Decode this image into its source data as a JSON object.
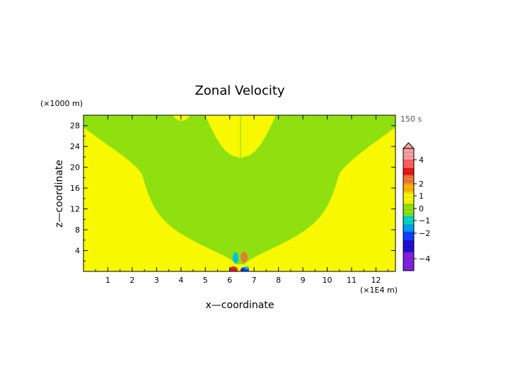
{
  "chart_data": {
    "type": "heatmap",
    "title": "Zonal Velocity",
    "time_label": "150 s",
    "xlabel": "x—coordinate",
    "ylabel": "z—coordinate",
    "x_unit": "(×1E4 m)",
    "y_unit": "(×1000 m)",
    "xlim": [
      0,
      12.8
    ],
    "ylim": [
      0,
      30
    ],
    "x_ticks": [
      1,
      2,
      3,
      4,
      5,
      6,
      7,
      8,
      9,
      10,
      11,
      12
    ],
    "y_ticks": [
      4,
      8,
      12,
      16,
      20,
      24,
      28
    ],
    "grid": false,
    "colorbar": {
      "tick_labels": [
        "4",
        "2",
        "1",
        "0",
        "−1",
        "−2",
        "−4"
      ],
      "tick_values": [
        4,
        2,
        1,
        0,
        -1,
        -2,
        -4
      ]
    },
    "colors": {
      "yellow_region": "#f8f800",
      "green_region": "#90e010",
      "cyan": "#00c0e0",
      "orange": "#e08030",
      "red": "#e02020",
      "blue": "#1040ff"
    }
  }
}
